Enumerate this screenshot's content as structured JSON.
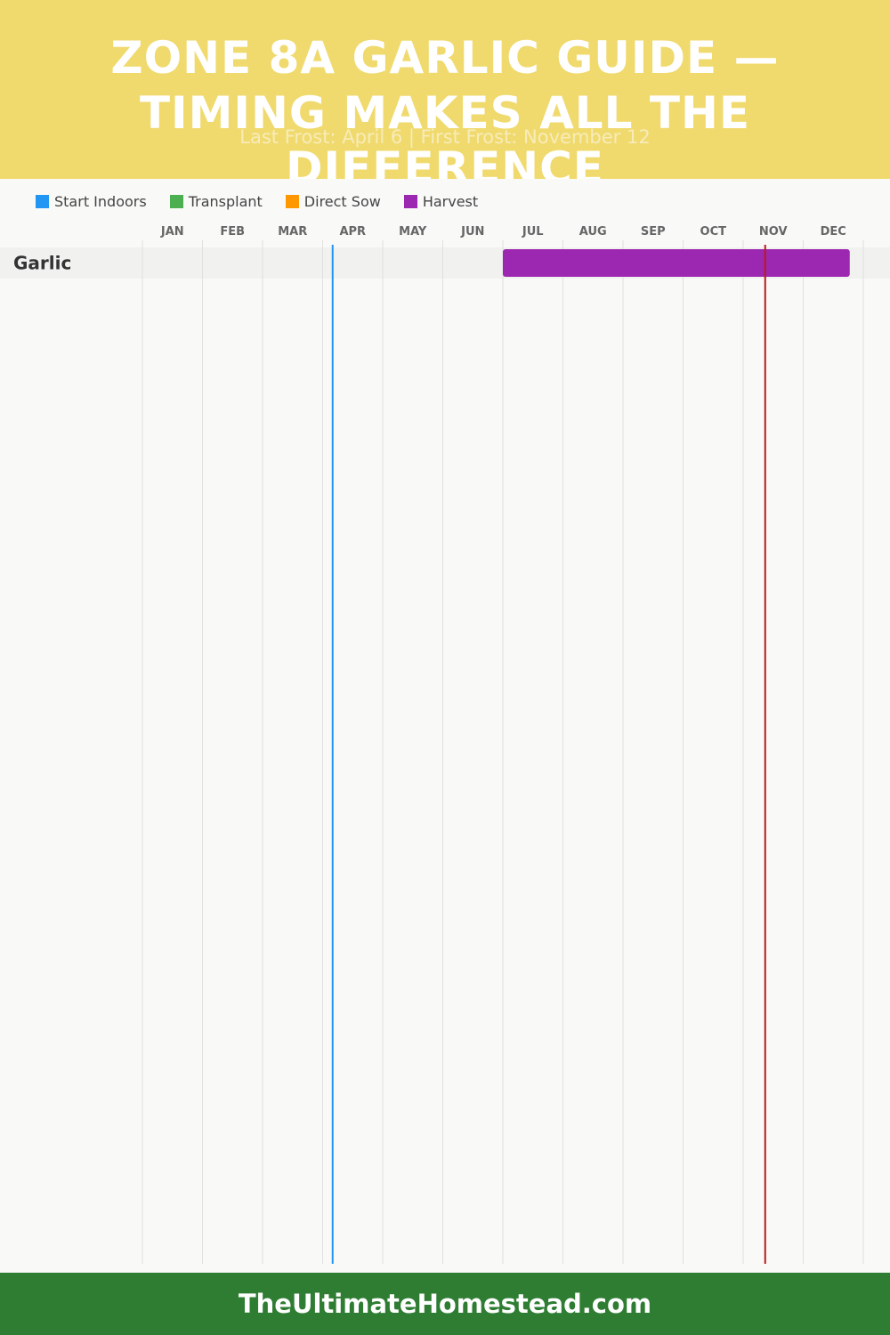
{
  "header": {
    "title": "ZONE 8A GARLIC GUIDE — TIMING MAKES ALL THE DIFFERENCE",
    "subtitle": "Last Frost: April 6 | First Frost: November 12"
  },
  "legend": {
    "items": [
      {
        "label": "Start Indoors",
        "color": "#2196f3"
      },
      {
        "label": "Transplant",
        "color": "#4caf50"
      },
      {
        "label": "Direct Sow",
        "color": "#ff9800"
      },
      {
        "label": "Harvest",
        "color": "#9c27b0"
      }
    ]
  },
  "chart_data": {
    "type": "gantt",
    "months": [
      "JAN",
      "FEB",
      "MAR",
      "APR",
      "MAY",
      "JUN",
      "JUL",
      "AUG",
      "SEP",
      "OCT",
      "NOV",
      "DEC"
    ],
    "rows": [
      {
        "crop": "Garlic",
        "bars": [
          {
            "phase": "Harvest",
            "start_month": 7,
            "start_day": 1,
            "end_month": 12,
            "end_day": 25
          }
        ]
      }
    ],
    "markers": [
      {
        "name": "Last Frost",
        "month": 4,
        "day": 6,
        "color": "#2196f3"
      },
      {
        "name": "First Frost",
        "month": 11,
        "day": 12,
        "color": "#b71c1c"
      }
    ],
    "grid": true
  },
  "footer": {
    "site": "TheUltimateHomestead.com"
  }
}
